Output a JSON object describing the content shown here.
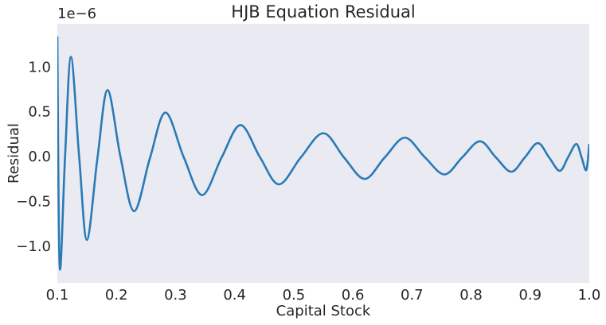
{
  "chart_data": {
    "type": "line",
    "title": "HJB Equation Residual",
    "x_label": "Capital Stock",
    "y_label": "Residual",
    "y_offset_label": "1e−6",
    "x": [
      0.1,
      0.104,
      0.113,
      0.123,
      0.137,
      0.15,
      0.168,
      0.185,
      0.207,
      0.23,
      0.257,
      0.283,
      0.314,
      0.345,
      0.378,
      0.41,
      0.443,
      0.475,
      0.512,
      0.55,
      0.585,
      0.62,
      0.654,
      0.688,
      0.722,
      0.755,
      0.785,
      0.815,
      0.842,
      0.868,
      0.891,
      0.913,
      0.932,
      0.95,
      0.964,
      0.978,
      0.987,
      0.995,
      1.0
    ],
    "series": [
      {
        "color": "#2a7ab5",
        "values": [
          1.35,
          -1.22,
          0,
          1.12,
          0,
          -0.92,
          0,
          0.75,
          0,
          -0.6,
          0,
          0.5,
          0,
          -0.42,
          0,
          0.36,
          0,
          -0.3,
          0,
          0.27,
          0,
          -0.24,
          0,
          0.22,
          0,
          -0.19,
          0,
          0.18,
          0,
          -0.16,
          0,
          0.16,
          0,
          -0.15,
          0,
          0.15,
          0,
          -0.14,
          0.15
        ]
      }
    ],
    "xlim": [
      0.1,
      1.0
    ],
    "xticks": [
      0.1,
      0.2,
      0.3,
      0.4,
      0.5,
      0.6,
      0.7,
      0.8,
      0.9,
      {
        "value": 1,
        "label": "1.0"
      }
    ],
    "ylim": [
      -1.4,
      1.49
    ],
    "yticks": [
      {
        "value": -1,
        "label": "−1.0"
      },
      {
        "value": -0.5,
        "label": "−0.5"
      },
      {
        "value": 0,
        "label": "0.0"
      },
      {
        "value": 0.5,
        "label": "0.5"
      },
      {
        "value": 1,
        "label": "1.0"
      }
    ],
    "grid": false
  }
}
